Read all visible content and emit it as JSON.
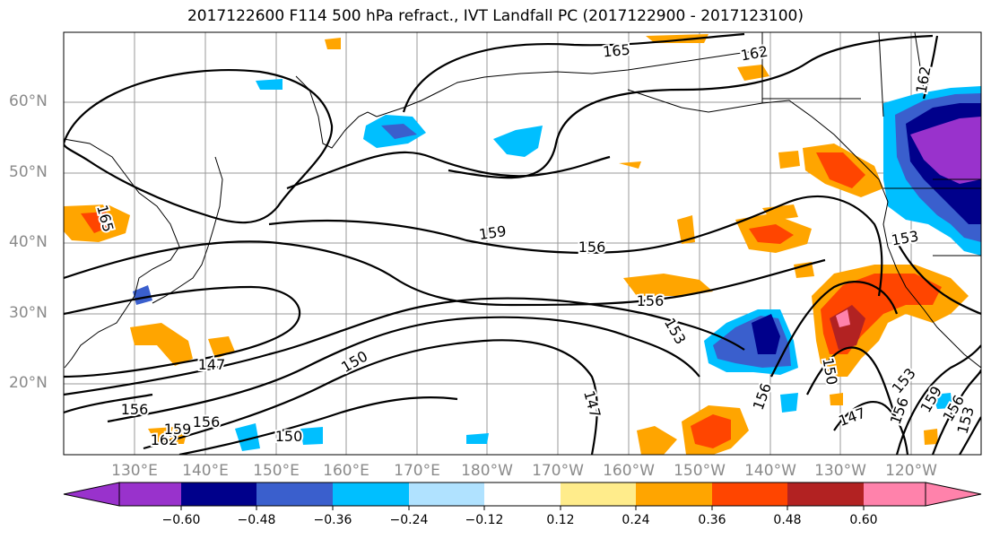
{
  "title": "2017122600 F114 500 hPa refract., IVT Landfall PC (2017122900 - 2017123100)",
  "lat_labels": [
    "60°N",
    "50°N",
    "40°N",
    "30°N",
    "20°N"
  ],
  "lon_labels": [
    "130°E",
    "140°E",
    "150°E",
    "160°E",
    "170°E",
    "180°W",
    "170°W",
    "160°W",
    "150°W",
    "140°W",
    "130°W",
    "120°W"
  ],
  "contour_labels": [
    "165",
    "162",
    "162",
    "159",
    "156",
    "156",
    "153",
    "153",
    "150",
    "150",
    "147",
    "147",
    "147",
    "165",
    "162",
    "159",
    "156",
    "156",
    "156",
    "159",
    "153",
    "150",
    "153",
    "156",
    "156"
  ],
  "colorbar": {
    "ticks": [
      "−0.60",
      "−0.48",
      "−0.36",
      "−0.24",
      "−0.12",
      "0.12",
      "0.24",
      "0.36",
      "0.48",
      "0.60"
    ],
    "colors": [
      "#9932cc",
      "#00008b",
      "#3a5fcd",
      "#00bfff",
      "#b0e2ff",
      "#ffffff",
      "#ffec8b",
      "#ffa500",
      "#ff4500",
      "#b22222",
      "#ff82ab"
    ]
  }
}
